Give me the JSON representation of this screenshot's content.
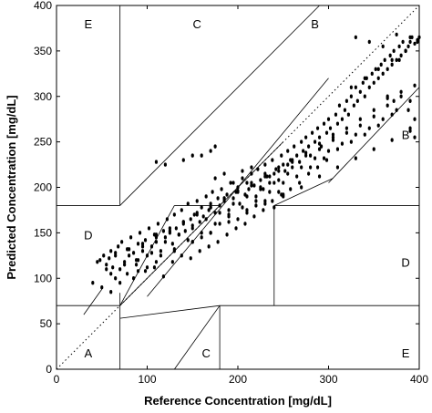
{
  "chart_data": {
    "type": "scatter",
    "title": "",
    "xlabel": "Reference Concentration [mg/dL]",
    "ylabel": "Predicted Concentration [mg/dL]",
    "xlim": [
      0,
      400
    ],
    "ylim": [
      0,
      400
    ],
    "xticks": [
      0,
      100,
      200,
      300,
      400
    ],
    "yticks": [
      0,
      50,
      100,
      150,
      200,
      250,
      300,
      350,
      400
    ],
    "grid": false,
    "point_color": "#000000",
    "zone_labels": [
      {
        "label": "A",
        "x": 35,
        "y": 18
      },
      {
        "label": "B",
        "x": 285,
        "y": 380
      },
      {
        "label": "B",
        "x": 385,
        "y": 258
      },
      {
        "label": "C",
        "x": 155,
        "y": 380
      },
      {
        "label": "C",
        "x": 165,
        "y": 18
      },
      {
        "label": "D",
        "x": 35,
        "y": 148
      },
      {
        "label": "D",
        "x": 385,
        "y": 118
      },
      {
        "label": "E",
        "x": 35,
        "y": 380
      },
      {
        "label": "E",
        "x": 385,
        "y": 18
      }
    ],
    "zone_boundaries": [
      {
        "x": [
          0,
          400
        ],
        "y": [
          0,
          400
        ],
        "style": "dotted"
      },
      {
        "x": [
          70,
          70
        ],
        "y": [
          180,
          400
        ]
      },
      {
        "x": [
          0,
          70
        ],
        "y": [
          180,
          180
        ]
      },
      {
        "x": [
          70,
          290
        ],
        "y": [
          180,
          400
        ]
      },
      {
        "x": [
          70,
          70
        ],
        "y": [
          0,
          84
        ]
      },
      {
        "x": [
          0,
          70
        ],
        "y": [
          70,
          70
        ]
      },
      {
        "x": [
          70,
          180
        ],
        "y": [
          56,
          70
        ]
      },
      {
        "x": [
          180,
          180
        ],
        "y": [
          0,
          70
        ]
      },
      {
        "x": [
          180,
          400
        ],
        "y": [
          70,
          70
        ]
      },
      {
        "x": [
          130,
          180
        ],
        "y": [
          0,
          70
        ]
      },
      {
        "x": [
          240,
          240
        ],
        "y": [
          70,
          180
        ]
      },
      {
        "x": [
          240,
          400
        ],
        "y": [
          180,
          180
        ]
      },
      {
        "x": [
          70,
          130
        ],
        "y": [
          70,
          180
        ]
      },
      {
        "x": [
          130,
          180
        ],
        "y": [
          180,
          180
        ]
      },
      {
        "x": [
          300,
          400
        ],
        "y": [
          205,
          310
        ]
      },
      {
        "x": [
          240,
          305
        ],
        "y": [
          180,
          210
        ]
      },
      {
        "x": [
          70,
          250
        ],
        "y": [
          70,
          250
        ]
      },
      {
        "x": [
          100,
          300
        ],
        "y": [
          80,
          320
        ]
      },
      {
        "x": [
          30,
          50
        ],
        "y": [
          60,
          88
        ]
      }
    ],
    "series": [
      {
        "points_description_only": false,
        "x": [
          45,
          48,
          52,
          55,
          58,
          60,
          62,
          65,
          68,
          70,
          72,
          75,
          78,
          80,
          82,
          85,
          88,
          90,
          92,
          95,
          98,
          100,
          102,
          105,
          108,
          110,
          112,
          115,
          118,
          120,
          122,
          125,
          128,
          130,
          132,
          135,
          138,
          140,
          142,
          145,
          148,
          150,
          152,
          155,
          158,
          160,
          162,
          165,
          168,
          170,
          172,
          175,
          178,
          180,
          182,
          185,
          188,
          190,
          192,
          195,
          198,
          200,
          202,
          205,
          208,
          210,
          212,
          215,
          218,
          220,
          222,
          225,
          228,
          230,
          232,
          235,
          238,
          240,
          242,
          245,
          248,
          250,
          252,
          255,
          258,
          260,
          262,
          265,
          268,
          270,
          272,
          275,
          278,
          280,
          282,
          285,
          288,
          290,
          292,
          295,
          298,
          300,
          302,
          305,
          308,
          310,
          312,
          315,
          318,
          320,
          322,
          325,
          328,
          330,
          332,
          335,
          338,
          340,
          342,
          345,
          348,
          350,
          352,
          355,
          358,
          360,
          362,
          365,
          368,
          370,
          372,
          375,
          378,
          380,
          382,
          385,
          388,
          390,
          392,
          395,
          398,
          400,
          60,
          75,
          90,
          105,
          120,
          135,
          150,
          165,
          180,
          195,
          210,
          225,
          240,
          255,
          270,
          285,
          300,
          315,
          330,
          345,
          360,
          375,
          390,
          65,
          80,
          95,
          110,
          125,
          140,
          155,
          170,
          185,
          200,
          215,
          230,
          245,
          260,
          275,
          290,
          305,
          320,
          335,
          350,
          365,
          380,
          395,
          85,
          100,
          115,
          130,
          145,
          160,
          175,
          190,
          205,
          220,
          235,
          250,
          265,
          280,
          295,
          310,
          325,
          340,
          355,
          370,
          95,
          110,
          125,
          140,
          155,
          170,
          185,
          200,
          215,
          230,
          245,
          260,
          275,
          290,
          305,
          320,
          335,
          350,
          365,
          70,
          90,
          110,
          130,
          150,
          170,
          190,
          210,
          230,
          250,
          270,
          290,
          310,
          330,
          350,
          370,
          390,
          55,
          65,
          78,
          88,
          98,
          108,
          118,
          128,
          138,
          148,
          158,
          168,
          178,
          188,
          198,
          208,
          218,
          228,
          238,
          248,
          258,
          268,
          278,
          288,
          298,
          175,
          185,
          195,
          205,
          215,
          225,
          235,
          245,
          255,
          180,
          190,
          200,
          210,
          220,
          230,
          240,
          250,
          170,
          160,
          150,
          40,
          50,
          60,
          170,
          175,
          160,
          330,
          345,
          360,
          375,
          390,
          385,
          370,
          355,
          340,
          325,
          150,
          140,
          120,
          110,
          380,
          395,
          388,
          372,
          365,
          395,
          390,
          385,
          378,
          398
        ],
        "y": [
          118,
          120,
          125,
          115,
          122,
          130,
          112,
          128,
          135,
          110,
          140,
          118,
          132,
          125,
          145,
          128,
          120,
          138,
          150,
          130,
          142,
          125,
          155,
          135,
          148,
          140,
          160,
          130,
          152,
          145,
          165,
          150,
          138,
          170,
          155,
          148,
          175,
          160,
          152,
          182,
          165,
          158,
          170,
          185,
          162,
          178,
          168,
          190,
          175,
          182,
          195,
          172,
          188,
          180,
          198,
          185,
          192,
          175,
          205,
          188,
          195,
          200,
          182,
          210,
          192,
          205,
          198,
          215,
          202,
          190,
          220,
          208,
          198,
          225,
          212,
          205,
          230,
          215,
          220,
          208,
          235,
          225,
          218,
          240,
          230,
          222,
          245,
          235,
          228,
          250,
          240,
          255,
          245,
          235,
          260,
          250,
          265,
          255,
          245,
          270,
          260,
          275,
          265,
          255,
          280,
          270,
          290,
          275,
          285,
          295,
          280,
          300,
          290,
          310,
          295,
          305,
          315,
          300,
          320,
          310,
          325,
          315,
          330,
          320,
          335,
          325,
          340,
          330,
          345,
          335,
          350,
          340,
          355,
          345,
          360,
          350,
          355,
          360,
          365,
          358,
          362,
          365,
          105,
          115,
          120,
          128,
          140,
          148,
          155,
          165,
          172,
          182,
          190,
          198,
          205,
          215,
          222,
          232,
          240,
          248,
          258,
          265,
          275,
          285,
          295,
          125,
          132,
          138,
          148,
          155,
          162,
          172,
          178,
          188,
          195,
          202,
          212,
          218,
          228,
          235,
          242,
          252,
          260,
          268,
          278,
          290,
          300,
          312,
          100,
          112,
          125,
          132,
          142,
          150,
          160,
          168,
          178,
          185,
          195,
          205,
          212,
          222,
          232,
          242,
          250,
          258,
          268,
          280,
          135,
          145,
          152,
          162,
          170,
          178,
          188,
          196,
          205,
          215,
          222,
          230,
          238,
          248,
          258,
          265,
          275,
          285,
          298,
          95,
          108,
          118,
          130,
          140,
          150,
          162,
          172,
          182,
          192,
          200,
          212,
          222,
          232,
          242,
          252,
          262,
          110,
          100,
          105,
          115,
          108,
          112,
          102,
          118,
          125,
          122,
          130,
          135,
          140,
          148,
          155,
          160,
          168,
          175,
          185,
          192,
          198,
          205,
          215,
          222,
          230,
          210,
          215,
          205,
          218,
          222,
          200,
          212,
          195,
          225,
          160,
          170,
          165,
          175,
          180,
          185,
          178,
          190,
          150,
          145,
          140,
          95,
          90,
          85,
          240,
          245,
          235,
          365,
          360,
          355,
          368,
          365,
          350,
          340,
          330,
          320,
          310,
          235,
          230,
          225,
          228,
          305,
          275,
          285,
          295,
          300,
          255,
          265,
          350,
          340,
          360
        ]
      }
    ]
  }
}
